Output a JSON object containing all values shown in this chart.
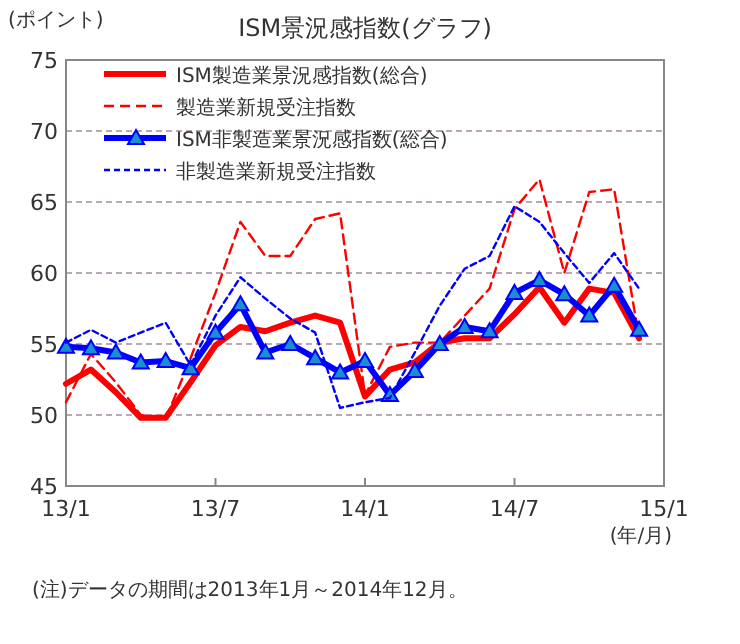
{
  "chart_data": {
    "type": "line",
    "title": "ISM景況感指数(グラフ)",
    "ylabel": "(ポイント)",
    "xlabel": "(年/月)",
    "x": [
      "2013-01",
      "2013-02",
      "2013-03",
      "2013-04",
      "2013-05",
      "2013-06",
      "2013-07",
      "2013-08",
      "2013-09",
      "2013-10",
      "2013-11",
      "2013-12",
      "2014-01",
      "2014-02",
      "2014-03",
      "2014-04",
      "2014-05",
      "2014-06",
      "2014-07",
      "2014-08",
      "2014-09",
      "2014-10",
      "2014-11",
      "2014-12"
    ],
    "xlim": [
      "2013-01",
      "2015-01"
    ],
    "xticks": [
      {
        "value": "2013-01",
        "label": "13/1"
      },
      {
        "value": "2013-07",
        "label": "13/7"
      },
      {
        "value": "2014-01",
        "label": "14/1"
      },
      {
        "value": "2014-07",
        "label": "14/7"
      },
      {
        "value": "2015-01",
        "label": "15/1"
      }
    ],
    "ylim": [
      45,
      75
    ],
    "yticks": [
      45,
      50,
      55,
      60,
      65,
      70,
      75
    ],
    "grid": "y",
    "legend": "top left",
    "series": [
      {
        "name": "ISM製造業景況感指数(総合)",
        "color": "#ff0000",
        "line_style": "solid",
        "marker": "none",
        "values": [
          52.2,
          53.2,
          51.6,
          49.8,
          49.8,
          52.3,
          54.9,
          56.2,
          55.9,
          56.5,
          57.0,
          56.5,
          51.3,
          53.2,
          53.7,
          55.1,
          55.4,
          55.4,
          57.1,
          59.0,
          56.5,
          58.9,
          58.6,
          55.4
        ]
      },
      {
        "name": "製造業新規受注指数",
        "color": "#ff0000",
        "line_style": "dashed",
        "marker": "none",
        "values": [
          50.9,
          54.3,
          52.3,
          50.0,
          49.7,
          54.0,
          58.6,
          63.6,
          61.2,
          61.2,
          63.8,
          64.2,
          51.4,
          54.8,
          55.1,
          55.1,
          57.0,
          58.9,
          64.5,
          66.6,
          60.0,
          65.7,
          65.9,
          55.4
        ]
      },
      {
        "name": "ISM非製造業景況感指数(総合)",
        "color": "#0000ff",
        "line_style": "solid",
        "marker": "triangle",
        "values": [
          54.8,
          54.7,
          54.4,
          53.7,
          53.8,
          53.3,
          55.8,
          57.8,
          54.4,
          55.0,
          54.0,
          53.0,
          53.8,
          51.4,
          53.1,
          55.0,
          56.2,
          55.9,
          58.6,
          59.5,
          58.5,
          57.0,
          59.1,
          56.0
        ]
      },
      {
        "name": "非製造業新規受注指数",
        "color": "#0000ff",
        "line_style": "dotted",
        "marker": "none",
        "values": [
          55.1,
          56.0,
          55.1,
          55.8,
          56.5,
          53.5,
          57.0,
          59.7,
          58.2,
          56.8,
          55.8,
          50.5,
          50.9,
          51.2,
          54.4,
          57.7,
          60.3,
          61.2,
          64.7,
          63.6,
          61.4,
          59.3,
          61.4,
          58.9
        ]
      }
    ],
    "annotations": [
      "(注)データの期間は2013年1月～2014年12月。"
    ]
  }
}
